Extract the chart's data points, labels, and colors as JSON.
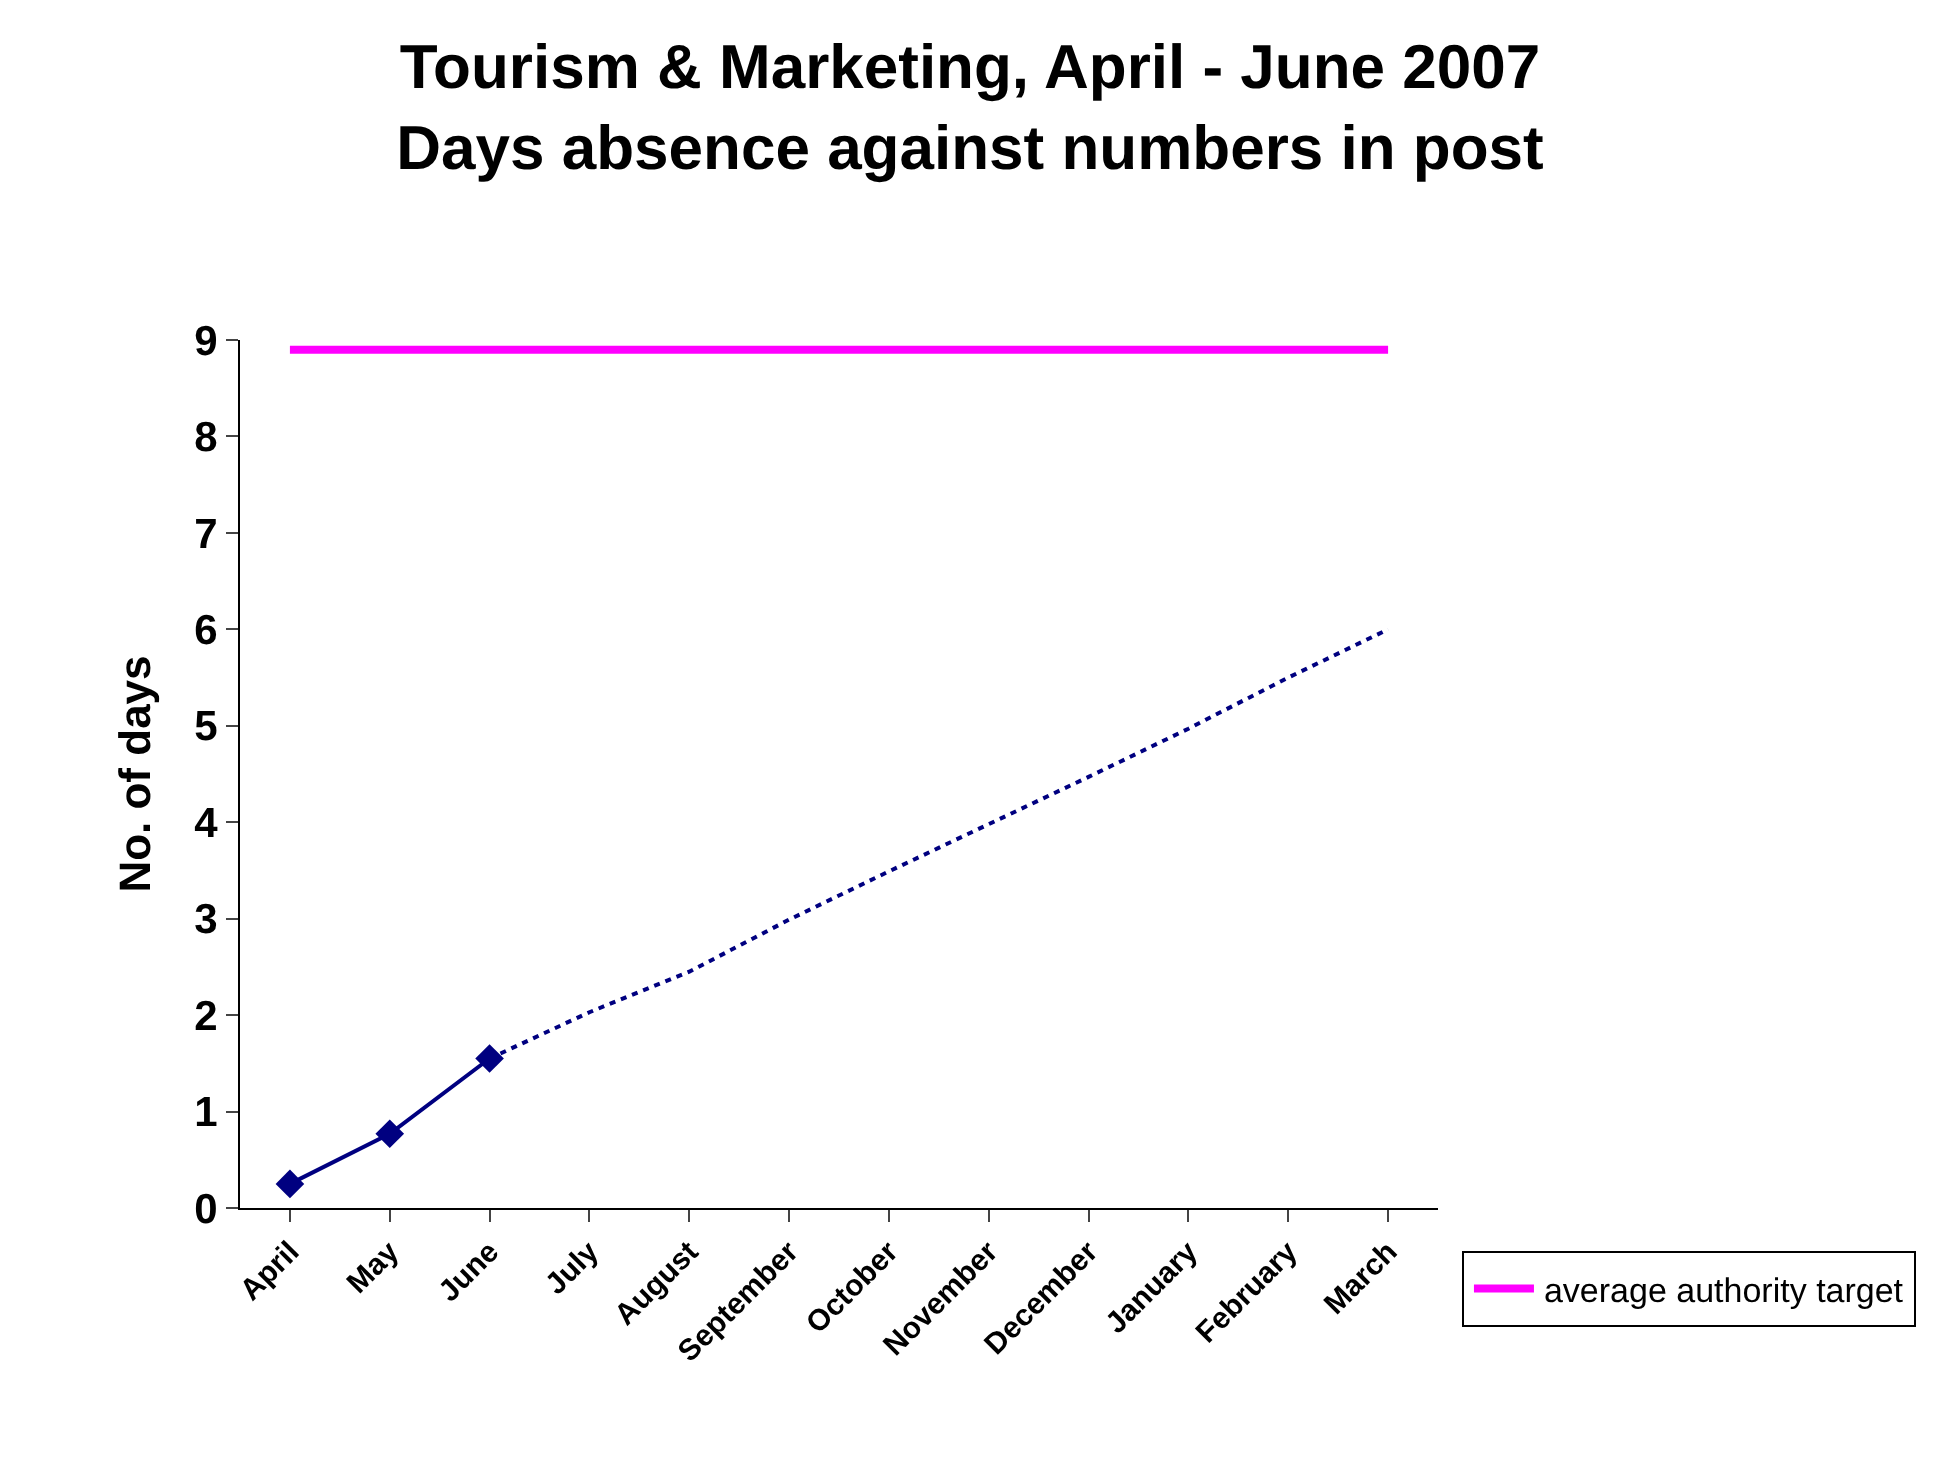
{
  "chart_data": {
    "type": "line",
    "title": "Tourism & Marketing, April - June 2007\nDays absence against numbers in post",
    "ylabel": "No. of days",
    "categories": [
      "April",
      "May",
      "June",
      "July",
      "August",
      "September",
      "October",
      "November",
      "December",
      "January",
      "February",
      "March"
    ],
    "series": [
      {
        "color": "#000080",
        "marker": "diamond",
        "line_style": "solid",
        "values": [
          0.25,
          0.77,
          1.55,
          null,
          null,
          null,
          null,
          null,
          null,
          null,
          null,
          null
        ]
      },
      {
        "color": "#000080",
        "marker": "none",
        "line_style": "dotted",
        "values": [
          null,
          null,
          1.55,
          2.03,
          2.45,
          2.99,
          3.49,
          3.98,
          4.47,
          4.97,
          5.5,
          6.0
        ]
      },
      {
        "name": "average authority target",
        "color": "#ff00ff",
        "marker": "none",
        "line_style": "solid",
        "values": [
          8.9,
          8.9,
          8.9,
          8.9,
          8.9,
          8.9,
          8.9,
          8.9,
          8.9,
          8.9,
          8.9,
          8.9
        ]
      }
    ],
    "ylim": [
      0,
      9
    ],
    "yticks": [
      0,
      1,
      2,
      3,
      4,
      5,
      6,
      7,
      8,
      9
    ],
    "legend": "bottom right"
  }
}
